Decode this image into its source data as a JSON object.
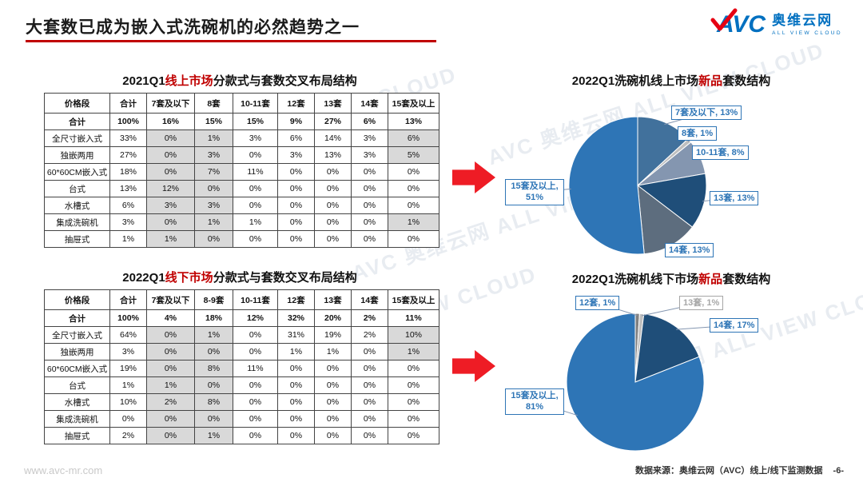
{
  "slide": {
    "title": "大套数已成为嵌入式洗碗机的必然趋势之一",
    "footer_left": "www.avc-mr.com",
    "footer_right": "数据来源：奥维云网（AVC）线上/线下监测数据",
    "page_number": "-6-",
    "watermark": "AVC 奥维云网 ALL VIEW CLOUD"
  },
  "logo": {
    "brand": "AVC",
    "brand_cn": "奥维云网",
    "brand_en": "ALL VIEW CLOUD"
  },
  "colors": {
    "accent_red": "#C00000",
    "arrow_red": "#EE1C25",
    "brand_blue": "#0070C0",
    "pie_main_blue": "#2E75B6",
    "pie_navy": "#1F4E79",
    "shaded_cell": "#D9D9D9"
  },
  "tables": [
    {
      "title": {
        "prefix": "2021Q1",
        "highlight": "线上市场",
        "suffix": "分款式与套数交叉布局结构"
      },
      "headers": [
        "价格段",
        "合计",
        "7套及以下",
        "8套",
        "10-11套",
        "12套",
        "13套",
        "14套",
        "15套及以上"
      ],
      "rows": [
        {
          "label": "合计",
          "values": [
            "100%",
            "16%",
            "15%",
            "15%",
            "9%",
            "27%",
            "6%",
            "13%"
          ],
          "shaded": []
        },
        {
          "label": "全尺寸嵌入式",
          "values": [
            "33%",
            "0%",
            "1%",
            "3%",
            "6%",
            "14%",
            "3%",
            "6%"
          ],
          "shaded": [
            1,
            2,
            7
          ]
        },
        {
          "label": "独嵌两用",
          "values": [
            "27%",
            "0%",
            "3%",
            "0%",
            "3%",
            "13%",
            "3%",
            "5%"
          ],
          "shaded": [
            1,
            2,
            7
          ]
        },
        {
          "label": "60*60CM嵌入式",
          "values": [
            "18%",
            "0%",
            "7%",
            "11%",
            "0%",
            "0%",
            "0%",
            "0%"
          ],
          "shaded": [
            1,
            2
          ]
        },
        {
          "label": "台式",
          "values": [
            "13%",
            "12%",
            "0%",
            "0%",
            "0%",
            "0%",
            "0%",
            "0%"
          ],
          "shaded": [
            1,
            2
          ]
        },
        {
          "label": "水槽式",
          "values": [
            "6%",
            "3%",
            "3%",
            "0%",
            "0%",
            "0%",
            "0%",
            "0%"
          ],
          "shaded": [
            1,
            2
          ]
        },
        {
          "label": "集成洗碗机",
          "values": [
            "3%",
            "0%",
            "1%",
            "1%",
            "0%",
            "0%",
            "0%",
            "1%"
          ],
          "shaded": [
            1,
            2,
            7
          ]
        },
        {
          "label": "抽屉式",
          "values": [
            "1%",
            "1%",
            "0%",
            "0%",
            "0%",
            "0%",
            "0%",
            "0%"
          ],
          "shaded": [
            1,
            2
          ]
        }
      ]
    },
    {
      "title": {
        "prefix": "2022Q1",
        "highlight": "线下市场",
        "suffix": "分款式与套数交叉布局结构"
      },
      "headers": [
        "价格段",
        "合计",
        "7套及以下",
        "8-9套",
        "10-11套",
        "12套",
        "13套",
        "14套",
        "15套及以上"
      ],
      "rows": [
        {
          "label": "合计",
          "values": [
            "100%",
            "4%",
            "18%",
            "12%",
            "32%",
            "20%",
            "2%",
            "11%"
          ],
          "shaded": []
        },
        {
          "label": "全尺寸嵌入式",
          "values": [
            "64%",
            "0%",
            "1%",
            "0%",
            "31%",
            "19%",
            "2%",
            "10%"
          ],
          "shaded": [
            1,
            2,
            7
          ]
        },
        {
          "label": "独嵌两用",
          "values": [
            "3%",
            "0%",
            "0%",
            "0%",
            "1%",
            "1%",
            "0%",
            "1%"
          ],
          "shaded": [
            1,
            2,
            7
          ]
        },
        {
          "label": "60*60CM嵌入式",
          "values": [
            "19%",
            "0%",
            "8%",
            "11%",
            "0%",
            "0%",
            "0%",
            "0%"
          ],
          "shaded": [
            1,
            2
          ]
        },
        {
          "label": "台式",
          "values": [
            "1%",
            "1%",
            "0%",
            "0%",
            "0%",
            "0%",
            "0%",
            "0%"
          ],
          "shaded": [
            1,
            2
          ]
        },
        {
          "label": "水槽式",
          "values": [
            "10%",
            "2%",
            "8%",
            "0%",
            "0%",
            "0%",
            "0%",
            "0%"
          ],
          "shaded": [
            1,
            2
          ]
        },
        {
          "label": "集成洗碗机",
          "values": [
            "0%",
            "0%",
            "0%",
            "0%",
            "0%",
            "0%",
            "0%",
            "0%"
          ],
          "shaded": [
            1,
            2
          ]
        },
        {
          "label": "抽屉式",
          "values": [
            "2%",
            "0%",
            "1%",
            "0%",
            "0%",
            "0%",
            "0%",
            "0%"
          ],
          "shaded": [
            1,
            2
          ]
        }
      ]
    }
  ],
  "chart_data": [
    {
      "type": "pie",
      "title": {
        "prefix": "2022Q1洗碗机线上市场",
        "highlight": "新品",
        "suffix": "套数结构"
      },
      "legend_position": "callouts",
      "slices": [
        {
          "label": "7套及以下",
          "value": 13,
          "display": "7套及以下, 13%",
          "color": "#41719C"
        },
        {
          "label": "8套",
          "value": 1,
          "display": "8套, 1%",
          "color": "#BFBFBF"
        },
        {
          "label": "10-11套",
          "value": 8,
          "display": "10-11套, 8%",
          "color": "#8496B0"
        },
        {
          "label": "13套",
          "value": 13,
          "display": "13套, 13%",
          "color": "#1F4E79"
        },
        {
          "label": "14套",
          "value": 13,
          "display": "14套, 13%",
          "color": "#5D6D7E"
        },
        {
          "label": "15套及以上",
          "value": 51,
          "display": "15套及以上, 51%",
          "color": "#2E75B6"
        }
      ]
    },
    {
      "type": "pie",
      "title": {
        "prefix": "2022Q1洗碗机线下市场",
        "highlight": "新品",
        "suffix": "套数结构"
      },
      "legend_position": "callouts",
      "slices": [
        {
          "label": "12套",
          "value": 1,
          "display": "12套, 1%",
          "color": "#808080"
        },
        {
          "label": "13套",
          "value": 1,
          "display": "13套, 1%",
          "color": "#BFBFBF"
        },
        {
          "label": "14套",
          "value": 17,
          "display": "14套, 17%",
          "color": "#1F4E79"
        },
        {
          "label": "15套及以上",
          "value": 81,
          "display": "15套及以上, 81%",
          "color": "#2E75B6"
        }
      ]
    }
  ]
}
